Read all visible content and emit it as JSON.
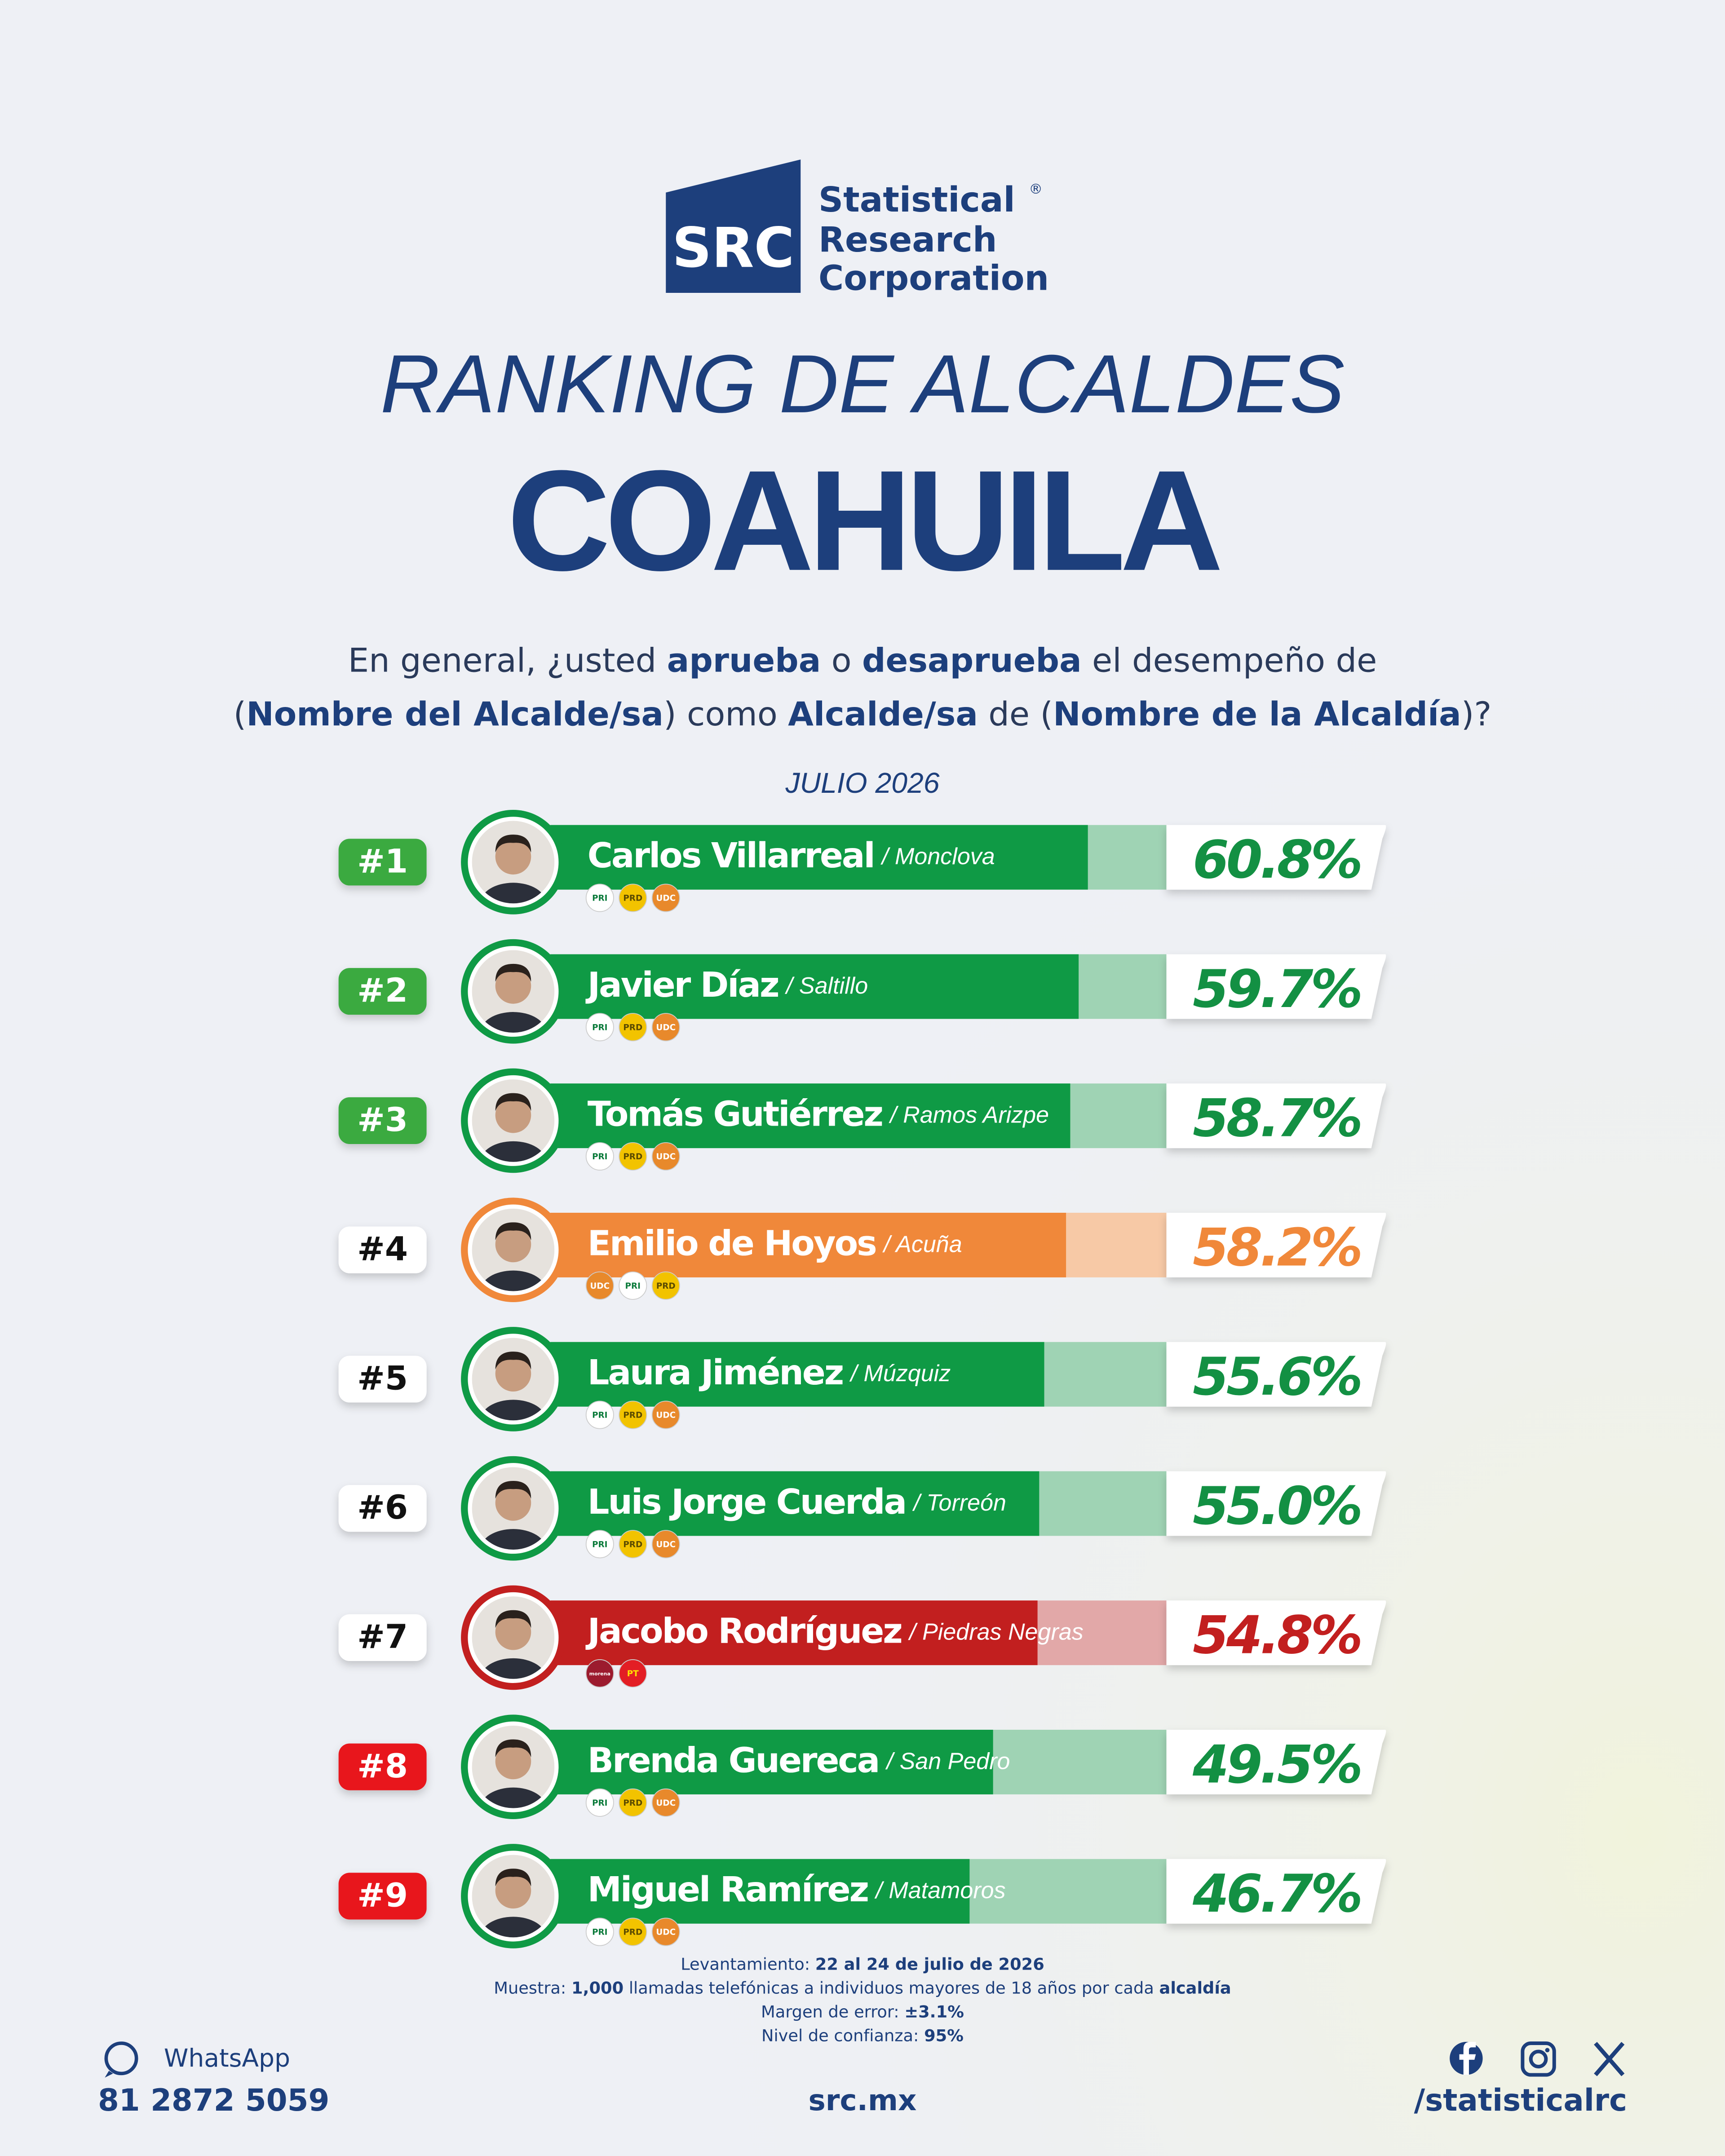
{
  "logo": {
    "abbr": "SRC",
    "lines": [
      "Statistical",
      "Research",
      "Corporation"
    ],
    "mark": "®"
  },
  "chart_data": {
    "type": "ranking",
    "title": "RANKING DE ALCALDES",
    "subtitle": "COAHUILA",
    "question": [
      [
        {
          "text": "En general, ¿usted ",
          "bold": false
        },
        {
          "text": "aprueba",
          "bold": true
        },
        {
          "text": " o ",
          "bold": false
        },
        {
          "text": "desaprueba",
          "bold": true
        },
        {
          "text": " el desempeño de",
          "bold": false
        }
      ],
      [
        {
          "text": "(",
          "bold": false
        },
        {
          "text": "Nombre del Alcalde/sa",
          "bold": true
        },
        {
          "text": ") como ",
          "bold": false
        },
        {
          "text": "Alcalde/sa",
          "bold": true
        },
        {
          "text": " de (",
          "bold": false
        },
        {
          "text": "Nombre de la Alcaldía",
          "bold": true
        },
        {
          "text": ")?",
          "bold": false
        }
      ]
    ],
    "period": "JULIO 2026",
    "ranks": [
      "#1",
      "#2",
      "#3",
      "#4",
      "#5",
      "#6",
      "#7",
      "#8",
      "#9"
    ],
    "rank_colors": [
      "#3aaa3f",
      "#3aaa3f",
      "#3aaa3f",
      "#ffffff",
      "#ffffff",
      "#ffffff",
      "#ffffff",
      "#e8141b",
      "#e8141b"
    ],
    "categories": [
      "Carlos Villarreal",
      "Javier Díaz",
      "Tomás Gutiérrez",
      "Emilio de Hoyos",
      "Laura Jiménez",
      "Luis Jorge Cuerda",
      "Jacobo Rodríguez",
      "Brenda Guereca",
      "Miguel Ramírez"
    ],
    "places": [
      "/ Monclova",
      "/ Saltillo",
      "/ Ramos Arizpe",
      "/ Acuña",
      "/ Múzquiz",
      "/ Torreón",
      "/ Piedras Negras",
      "/ San Pedro",
      "/ Matamoros"
    ],
    "values": [
      60.8,
      59.7,
      58.7,
      58.2,
      55.6,
      55.0,
      54.8,
      49.5,
      46.7
    ],
    "value_labels": [
      "60.8%",
      "59.7%",
      "58.7%",
      "58.2%",
      "55.6%",
      "55.0%",
      "54.8%",
      "49.5%",
      "46.7%"
    ],
    "colors": [
      "#0f9a45",
      "#0f9a45",
      "#0f9a45",
      "#f0883a",
      "#0f9a45",
      "#0f9a45",
      "#c21f1f",
      "#0f9a45",
      "#0f9a45"
    ],
    "parties": [
      [
        "PRI",
        "PRD",
        "UDC"
      ],
      [
        "PRI",
        "PRD",
        "UDC"
      ],
      [
        "PRI",
        "PRD",
        "UDC"
      ],
      [
        "UDC",
        "PRI",
        "PRD"
      ],
      [
        "PRI",
        "PRD",
        "UDC"
      ],
      [
        "PRI",
        "PRD",
        "UDC"
      ],
      [
        "morena",
        "PT"
      ],
      [
        "PRI",
        "PRD",
        "UDC"
      ],
      [
        "PRI",
        "PRD",
        "UDC"
      ]
    ],
    "xlim": [
      0,
      100
    ]
  },
  "footer": {
    "notes": [
      [
        {
          "text": "Levantamiento: ",
          "bold": false
        },
        {
          "text": "22 al 24 de julio de 2026",
          "bold": true
        }
      ],
      [
        {
          "text": "Muestra: ",
          "bold": false
        },
        {
          "text": "1,000",
          "bold": true
        },
        {
          "text": " llamadas telefónicas a individuos mayores de 18 años por cada ",
          "bold": false
        },
        {
          "text": "alcaldía",
          "bold": true
        }
      ],
      [
        {
          "text": "Margen de error: ",
          "bold": false
        },
        {
          "text": "±3.1%",
          "bold": true
        }
      ],
      [
        {
          "text": "Nivel de confianza: ",
          "bold": false
        },
        {
          "text": "95%",
          "bold": true
        }
      ]
    ],
    "whatsapp": "WhatsApp",
    "phone": "81 2872 5059",
    "site": "src.mx",
    "handle": "/statisticalrc"
  }
}
